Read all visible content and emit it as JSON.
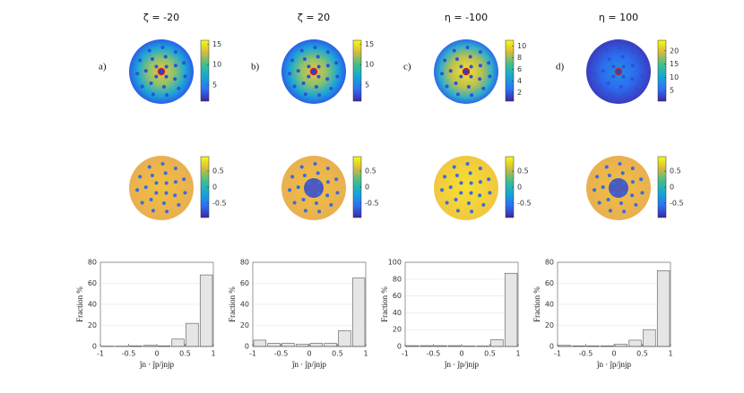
{
  "chart_data": [
    {
      "type": "histogram",
      "title": "ζ = -20",
      "panel_label": "a)",
      "colorbar_top": {
        "lim": [
          1,
          16
        ],
        "ticks": [
          5,
          10,
          15
        ]
      },
      "colorbar_bottom": {
        "lim": [
          -0.95,
          0.95
        ],
        "ticks": [
          -0.5,
          0,
          0.5
        ]
      },
      "bins": [
        -1,
        -0.75,
        -0.5,
        -0.25,
        0,
        0.25,
        0.5,
        0.75,
        1
      ],
      "values": [
        0.3,
        0.3,
        0.5,
        1,
        0.5,
        7,
        22,
        68
      ],
      "color": "#e6e6e6",
      "xlim": [
        -1,
        1
      ],
      "xticks": [
        -1,
        -0.5,
        0,
        0.5,
        1
      ],
      "ylim": [
        0,
        80
      ],
      "yticks": [
        0,
        20,
        40,
        60,
        80
      ],
      "xlabel": "ĵn · ĵp/jnjp",
      "ylabel": "Fraction %",
      "grid": true
    },
    {
      "type": "histogram",
      "title": "ζ = 20",
      "panel_label": "b)",
      "colorbar_top": {
        "lim": [
          1,
          16
        ],
        "ticks": [
          5,
          10,
          15
        ]
      },
      "colorbar_bottom": {
        "lim": [
          -0.95,
          0.95
        ],
        "ticks": [
          -0.5,
          0,
          0.5
        ]
      },
      "bins": [
        -1,
        -0.75,
        -0.5,
        -0.25,
        0,
        0.25,
        0.5,
        0.75,
        1
      ],
      "values": [
        6,
        3,
        3,
        2,
        3,
        3,
        15,
        65
      ],
      "color": "#e6e6e6",
      "xlim": [
        -1,
        1
      ],
      "xticks": [
        -1,
        -0.5,
        0,
        0.5,
        1
      ],
      "ylim": [
        0,
        80
      ],
      "yticks": [
        0,
        20,
        40,
        60,
        80
      ],
      "xlabel": "ĵn · ĵp/jnjp",
      "ylabel": "Fraction %",
      "grid": true
    },
    {
      "type": "histogram",
      "title": "η = -100",
      "panel_label": "c)",
      "colorbar_top": {
        "lim": [
          0.5,
          11
        ],
        "ticks": [
          2,
          4,
          6,
          8,
          10
        ]
      },
      "colorbar_bottom": {
        "lim": [
          -0.95,
          0.95
        ],
        "ticks": [
          -0.5,
          0,
          0.5
        ]
      },
      "bins": [
        -1,
        -0.75,
        -0.5,
        -0.25,
        0,
        0.25,
        0.5,
        0.75,
        1
      ],
      "values": [
        1,
        1,
        1,
        1,
        0.5,
        0.5,
        8,
        87
      ],
      "color": "#e6e6e6",
      "xlim": [
        -1,
        1
      ],
      "xticks": [
        -1,
        -0.5,
        0,
        0.5,
        1
      ],
      "ylim": [
        0,
        100
      ],
      "yticks": [
        0,
        20,
        40,
        60,
        80,
        100
      ],
      "xlabel": "ĵn · ĵp/jnjp",
      "ylabel": "Fraction %",
      "grid": true
    },
    {
      "type": "histogram",
      "title": "η = 100",
      "panel_label": "d)",
      "colorbar_top": {
        "lim": [
          1,
          24
        ],
        "ticks": [
          5,
          10,
          15,
          20
        ]
      },
      "colorbar_bottom": {
        "lim": [
          -0.95,
          0.95
        ],
        "ticks": [
          -0.5,
          0,
          0.5
        ]
      },
      "bins": [
        -1,
        -0.75,
        -0.5,
        -0.25,
        0,
        0.25,
        0.5,
        0.75,
        1
      ],
      "values": [
        1,
        0.5,
        0.5,
        0.5,
        2,
        6,
        16,
        72
      ],
      "color": "#e6e6e6",
      "xlim": [
        -1,
        1
      ],
      "xticks": [
        -1,
        -0.5,
        0,
        0.5,
        1
      ],
      "ylim": [
        0,
        80
      ],
      "yticks": [
        0,
        20,
        40,
        60,
        80
      ],
      "xlabel": "ĵn · ĵp/jnjp",
      "ylabel": "Fraction %",
      "grid": true
    }
  ]
}
